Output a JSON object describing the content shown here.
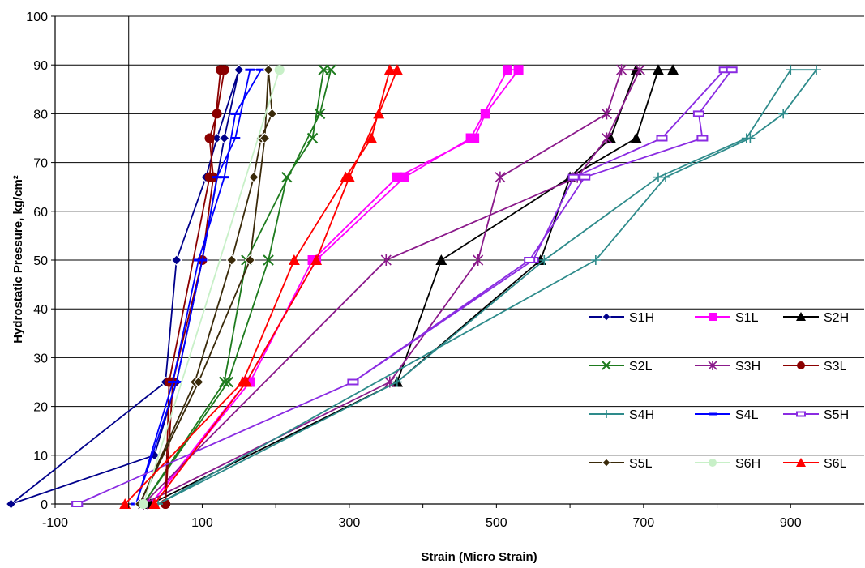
{
  "chart_data": {
    "type": "line",
    "title": "",
    "xlabel": "Strain (Micro Strain)",
    "ylabel": "Hydrostatic Pressure, kg/cm²",
    "xlim": [
      -100,
      1000
    ],
    "ylim": [
      0,
      100
    ],
    "x_ticks": [
      -100,
      100,
      300,
      500,
      700,
      900
    ],
    "y_ticks": [
      0,
      10,
      20,
      30,
      40,
      50,
      60,
      70,
      80,
      90,
      100
    ],
    "grid": "horizontal",
    "legend_position": "bottom-right",
    "series": [
      {
        "name": "S1H",
        "color": "#00008B",
        "marker": "diamond",
        "x": [
          -160,
          50,
          65,
          105,
          120,
          150,
          130,
          100,
          65,
          35,
          -160
        ],
        "y": [
          0,
          25,
          50,
          67,
          75,
          89,
          75,
          50,
          25,
          10,
          0
        ]
      },
      {
        "name": "S1L",
        "color": "#FF00FF",
        "marker": "square",
        "x": [
          30,
          160,
          255,
          375,
          465,
          515,
          530,
          485,
          470,
          365,
          250,
          165,
          30
        ],
        "y": [
          0,
          25,
          50,
          67,
          75,
          89,
          89,
          80,
          75,
          67,
          50,
          25,
          0
        ]
      },
      {
        "name": "S2H",
        "color": "#000000",
        "marker": "triangle",
        "x": [
          30,
          365,
          560,
          600,
          655,
          690,
          740,
          720,
          690,
          600,
          425,
          365,
          30
        ],
        "y": [
          0,
          25,
          50,
          67,
          75,
          89,
          89,
          89,
          75,
          67,
          50,
          25,
          0
        ]
      },
      {
        "name": "S2L",
        "color": "#1E7B1E",
        "marker": "x",
        "x": [
          20,
          135,
          190,
          215,
          250,
          265,
          275,
          260,
          160,
          130,
          20
        ],
        "y": [
          0,
          25,
          50,
          67,
          75,
          89,
          89,
          80,
          50,
          25,
          0
        ]
      },
      {
        "name": "S3H",
        "color": "#8B1A8B",
        "marker": "star",
        "x": [
          20,
          355,
          475,
          505,
          650,
          670,
          695,
          650,
          610,
          350,
          20
        ],
        "y": [
          0,
          25,
          50,
          67,
          80,
          89,
          89,
          75,
          67,
          50,
          0
        ]
      },
      {
        "name": "S3L",
        "color": "#8B0000",
        "marker": "circle",
        "x": [
          50,
          60,
          100,
          115,
          110,
          120,
          130,
          125,
          110,
          55,
          50
        ],
        "y": [
          0,
          25,
          50,
          67,
          75,
          80,
          89,
          89,
          67,
          25,
          0
        ]
      },
      {
        "name": "S4H",
        "color": "#2E8B8B",
        "marker": "plus",
        "x": [
          40,
          365,
          565,
          720,
          840,
          900,
          935,
          890,
          845,
          730,
          635,
          40
        ],
        "y": [
          0,
          25,
          50,
          67,
          75,
          89,
          89,
          80,
          75,
          67,
          50,
          0
        ]
      },
      {
        "name": "S4L",
        "color": "#0000FF",
        "marker": "dash",
        "x": [
          10,
          65,
          100,
          120,
          145,
          165,
          180,
          145,
          130,
          95,
          60,
          10
        ],
        "y": [
          0,
          25,
          50,
          67,
          75,
          89,
          89,
          80,
          67,
          50,
          25,
          0
        ]
      },
      {
        "name": "S5H",
        "color": "#8A2BE2",
        "marker": "rect",
        "x": [
          -70,
          305,
          550,
          605,
          725,
          810,
          820,
          775,
          780,
          620,
          545,
          305,
          -70
        ],
        "y": [
          0,
          25,
          50,
          67,
          75,
          89,
          89,
          80,
          75,
          67,
          50,
          25,
          0
        ]
      },
      {
        "name": "S5L",
        "color": "#3A2A0A",
        "marker": "diamond",
        "x": [
          15,
          90,
          140,
          170,
          180,
          195,
          190,
          185,
          165,
          95,
          15
        ],
        "y": [
          0,
          25,
          50,
          67,
          75,
          80,
          89,
          75,
          50,
          25,
          0
        ]
      },
      {
        "name": "S6H",
        "color": "#C8F0C8",
        "marker": "circle",
        "x": [
          20,
          205,
          205,
          20
        ],
        "y": [
          0,
          89,
          89,
          0
        ]
      },
      {
        "name": "S6L",
        "color": "#FF0000",
        "marker": "triangle",
        "x": [
          -5,
          155,
          225,
          295,
          330,
          355,
          365,
          340,
          300,
          255,
          160,
          35
        ],
        "y": [
          0,
          25,
          50,
          67,
          75,
          89,
          89,
          80,
          67,
          50,
          25,
          0
        ]
      }
    ]
  }
}
